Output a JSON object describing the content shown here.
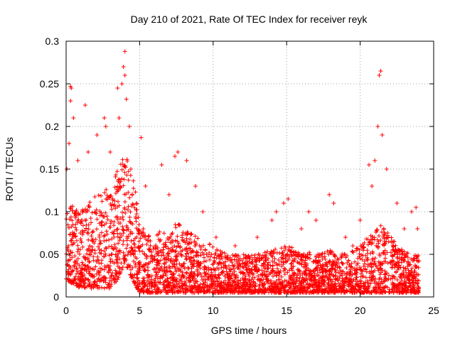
{
  "chart_data": {
    "type": "scatter",
    "title": "Day 210 of 2021, Rate Of TEC Index for receiver reyk",
    "xlabel": "GPS time / hours",
    "ylabel": "ROTI / TECUs",
    "xlim": [
      0,
      25
    ],
    "ylim": [
      0,
      0.3
    ],
    "xticks": [
      0,
      5,
      10,
      15,
      20,
      25
    ],
    "xtick_labels": [
      "0",
      "5",
      "10",
      "15",
      "20",
      "25"
    ],
    "yticks": [
      0,
      0.05,
      0.1,
      0.15,
      0.2,
      0.25,
      0.3
    ],
    "ytick_labels": [
      "0",
      "0.05",
      "0.1",
      "0.15",
      "0.2",
      "0.25",
      "0.3"
    ],
    "grid": true,
    "marker": "+",
    "color": "#ff0000",
    "series": [
      {
        "name": "ROTI",
        "points_sampled": [
          [
            0.05,
            0.15
          ],
          [
            0.2,
            0.18
          ],
          [
            0.3,
            0.247
          ],
          [
            0.3,
            0.23
          ],
          [
            0.35,
            0.245
          ],
          [
            0.5,
            0.21
          ],
          [
            0.8,
            0.16
          ],
          [
            1.3,
            0.225
          ],
          [
            1.5,
            0.17
          ],
          [
            2.1,
            0.19
          ],
          [
            2.6,
            0.21
          ],
          [
            2.7,
            0.2
          ],
          [
            3.0,
            0.17
          ],
          [
            3.5,
            0.245
          ],
          [
            3.6,
            0.21
          ],
          [
            3.8,
            0.25
          ],
          [
            3.9,
            0.27
          ],
          [
            4.0,
            0.288
          ],
          [
            4.0,
            0.26
          ],
          [
            4.1,
            0.232
          ],
          [
            4.3,
            0.2
          ],
          [
            4.4,
            0.15
          ],
          [
            5.1,
            0.187
          ],
          [
            5.4,
            0.13
          ],
          [
            6.5,
            0.155
          ],
          [
            7.0,
            0.12
          ],
          [
            7.4,
            0.165
          ],
          [
            7.6,
            0.17
          ],
          [
            8.2,
            0.16
          ],
          [
            8.8,
            0.13
          ],
          [
            9.3,
            0.1
          ],
          [
            10.2,
            0.07
          ],
          [
            11.5,
            0.06
          ],
          [
            13.0,
            0.07
          ],
          [
            14.0,
            0.09
          ],
          [
            14.3,
            0.1
          ],
          [
            14.8,
            0.11
          ],
          [
            15.1,
            0.115
          ],
          [
            16.0,
            0.08
          ],
          [
            16.5,
            0.1
          ],
          [
            17.0,
            0.09
          ],
          [
            17.9,
            0.12
          ],
          [
            18.2,
            0.11
          ],
          [
            19.0,
            0.07
          ],
          [
            19.5,
            0.06
          ],
          [
            20.0,
            0.09
          ],
          [
            20.6,
            0.155
          ],
          [
            20.8,
            0.13
          ],
          [
            21.0,
            0.16
          ],
          [
            21.2,
            0.2
          ],
          [
            21.3,
            0.26
          ],
          [
            21.4,
            0.265
          ],
          [
            21.5,
            0.19
          ],
          [
            21.8,
            0.15
          ],
          [
            22.5,
            0.11
          ],
          [
            23.0,
            0.08
          ],
          [
            23.5,
            0.1
          ],
          [
            23.8,
            0.105
          ],
          [
            23.9,
            0.08
          ]
        ]
      }
    ],
    "profile_note": "dense band of points mostly between 0.005 and 0.07 across 0-24 h, with peaks near 4 h and 21.3 h",
    "envelope": {
      "x": [
        0,
        0.5,
        1,
        1.5,
        2,
        2.5,
        3,
        3.5,
        4,
        4.5,
        5,
        5.5,
        6,
        6.5,
        7,
        7.5,
        8,
        8.5,
        9,
        9.5,
        10,
        11,
        12,
        13,
        14,
        15,
        16,
        17,
        18,
        19,
        20,
        20.5,
        21,
        21.5,
        22,
        22.5,
        23,
        23.5,
        24
      ],
      "upper": [
        0.1,
        0.11,
        0.1,
        0.11,
        0.12,
        0.13,
        0.13,
        0.15,
        0.17,
        0.15,
        0.09,
        0.08,
        0.07,
        0.08,
        0.07,
        0.09,
        0.08,
        0.075,
        0.07,
        0.065,
        0.06,
        0.05,
        0.05,
        0.05,
        0.055,
        0.06,
        0.055,
        0.05,
        0.055,
        0.05,
        0.06,
        0.07,
        0.08,
        0.085,
        0.075,
        0.06,
        0.055,
        0.05,
        0.05
      ],
      "lower": [
        0.02,
        0.015,
        0.01,
        0.01,
        0.01,
        0.01,
        0.01,
        0.02,
        0.04,
        0.02,
        0.005,
        0.005,
        0.005,
        0.005,
        0.005,
        0.005,
        0.005,
        0.005,
        0.005,
        0.005,
        0.005,
        0.005,
        0.005,
        0.005,
        0.005,
        0.005,
        0.005,
        0.005,
        0.005,
        0.005,
        0.005,
        0.005,
        0.005,
        0.005,
        0.005,
        0.005,
        0.005,
        0.005,
        0.005
      ],
      "count_per_hour": 140
    }
  }
}
